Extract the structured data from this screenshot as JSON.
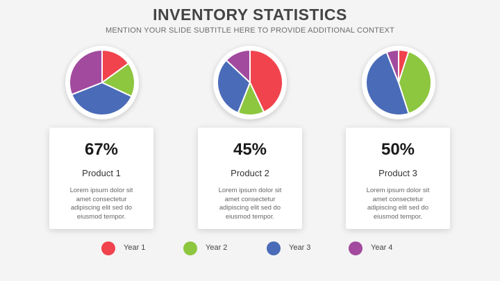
{
  "header": {
    "title": "INVENTORY STATISTICS",
    "subtitle": "MENTION YOUR SLIDE SUBTITLE HERE TO PROVIDE ADDITIONAL CONTEXT"
  },
  "colors": {
    "year1": "#f0434d",
    "year2": "#8dc63f",
    "year3": "#4a6bb8",
    "year4": "#a24a9e"
  },
  "chart_data": [
    {
      "type": "pie",
      "categories": [
        "Year 1",
        "Year 2",
        "Year 3",
        "Year 4"
      ],
      "values": [
        15,
        17,
        37,
        31
      ]
    },
    {
      "type": "pie",
      "categories": [
        "Year 1",
        "Year 2",
        "Year 3",
        "Year 4"
      ],
      "values": [
        43,
        13,
        31,
        13
      ]
    },
    {
      "type": "pie",
      "categories": [
        "Year 1",
        "Year 2",
        "Year 3",
        "Year 4"
      ],
      "values": [
        5,
        40,
        49,
        6
      ]
    }
  ],
  "cards": [
    {
      "percent": "67%",
      "name": "Product 1",
      "description": "Lorem ipsum dolor sit amet consectetur adipiscing elit sed do eiusmod tempor."
    },
    {
      "percent": "45%",
      "name": "Product 2",
      "description": "Lorem ipsum dolor sit amet consectetur adipiscing elit sed do eiusmod tempor."
    },
    {
      "percent": "50%",
      "name": "Product 3",
      "description": "Lorem ipsum dolor sit amet consectetur adipiscing elit sed do eiusmod tempor."
    }
  ],
  "legend": {
    "position": "bottom",
    "items": [
      "Year 1",
      "Year 2",
      "Year 3",
      "Year 4"
    ]
  }
}
